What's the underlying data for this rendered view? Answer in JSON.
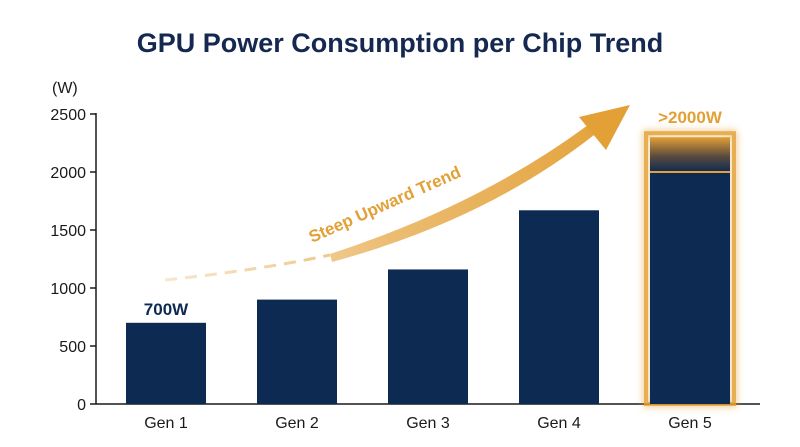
{
  "chart_data": {
    "type": "bar",
    "title": "GPU Power Consumption per Chip Trend",
    "ylabel": "(W)",
    "xlabel": "",
    "ylim": [
      0,
      2500
    ],
    "yticks": [
      0,
      500,
      1000,
      1500,
      2000,
      2500
    ],
    "categories": [
      "Gen 1",
      "Gen 2",
      "Gen 3",
      "Gen 4",
      "Gen 5"
    ],
    "values": [
      700,
      900,
      1160,
      1670,
      2000
    ],
    "gen5_extended_to": 2300,
    "data_labels": [
      {
        "category": "Gen 1",
        "text": "700W"
      },
      {
        "category": "Gen 5",
        "text": ">2000W"
      }
    ],
    "annotation": "Steep Upward Trend",
    "grid": false,
    "colors": {
      "bar": "#0d2a52",
      "accent": "#e3a036",
      "title": "#142850"
    }
  }
}
